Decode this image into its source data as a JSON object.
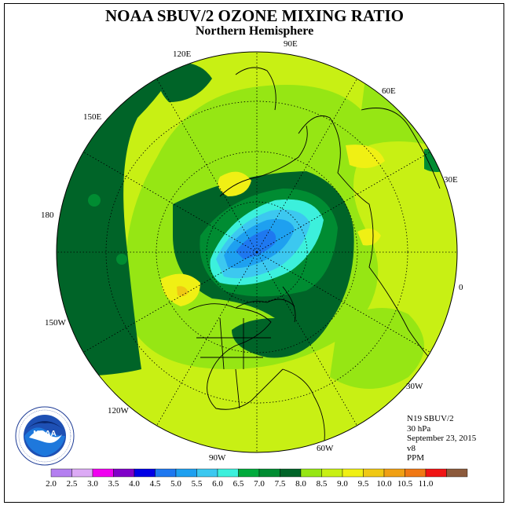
{
  "title": "NOAA SBUV/2 OZONE MIXING RATIO",
  "subtitle": "Northern Hemisphere",
  "longitude_labels": [
    "90E",
    "60E",
    "30E",
    "0",
    "30W",
    "60W",
    "90W",
    "120W",
    "150W",
    "180",
    "150E",
    "120E"
  ],
  "info": {
    "satellite": "N19 SBUV/2",
    "level": "30 hPa",
    "date": "September 23, 2015",
    "version": "v8",
    "units": "PPM"
  },
  "colorbar": {
    "labels": [
      "2.0",
      "2.5",
      "3.0",
      "3.5",
      "4.0",
      "4.5",
      "5.0",
      "5.5",
      "6.0",
      "6.5",
      "7.0",
      "7.5",
      "8.0",
      "8.5",
      "9.0",
      "9.5",
      "10.0",
      "10.5",
      "11.0"
    ],
    "colors": [
      "#b47ff0",
      "#dcaaf5",
      "#f000f0",
      "#8000c8",
      "#0000e6",
      "#1e78f0",
      "#1ea0f0",
      "#3cc8f0",
      "#3cf0dc",
      "#00aa3c",
      "#008c32",
      "#006428",
      "#96e614",
      "#c8f014",
      "#f0f014",
      "#f0c814",
      "#f0a014",
      "#f07814",
      "#f01414",
      "#8c5a3c"
    ]
  },
  "logo": {
    "text": "NOAA",
    "ring_text": "NATIONAL OCEANIC AND ATMOSPHERIC ADMINISTRATION · U.S. DEPARTMENT OF COMMERCE"
  }
}
